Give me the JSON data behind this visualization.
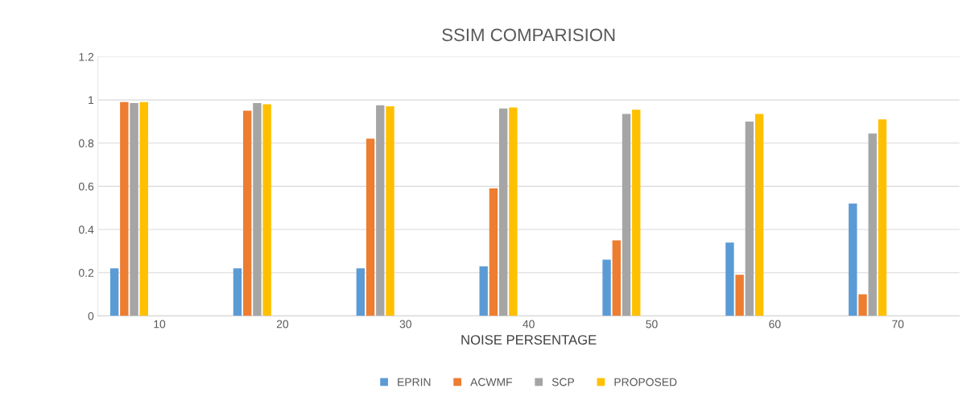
{
  "chart_data": {
    "type": "bar",
    "title": "SSIM COMPARISION",
    "xlabel": "NOISE PERSENTAGE",
    "categories": [
      "10",
      "20",
      "30",
      "40",
      "50",
      "60",
      "70"
    ],
    "series": [
      {
        "name": "EPRIN",
        "color": "#5b9bd5",
        "values": [
          0.22,
          0.22,
          0.22,
          0.23,
          0.26,
          0.34,
          0.52
        ]
      },
      {
        "name": "ACWMF",
        "color": "#ed7d31",
        "values": [
          0.99,
          0.95,
          0.82,
          0.59,
          0.35,
          0.19,
          0.1
        ]
      },
      {
        "name": "SCP",
        "color": "#a5a5a5",
        "values": [
          0.985,
          0.985,
          0.975,
          0.96,
          0.935,
          0.9,
          0.845
        ]
      },
      {
        "name": "PROPOSED",
        "color": "#ffc000",
        "values": [
          0.99,
          0.98,
          0.97,
          0.965,
          0.955,
          0.935,
          0.91
        ]
      }
    ],
    "ylim": [
      0,
      1.2
    ],
    "yticks": [
      0,
      0.2,
      0.4,
      0.6,
      0.8,
      1,
      1.2
    ],
    "grid": "y",
    "legend": "bottom"
  }
}
